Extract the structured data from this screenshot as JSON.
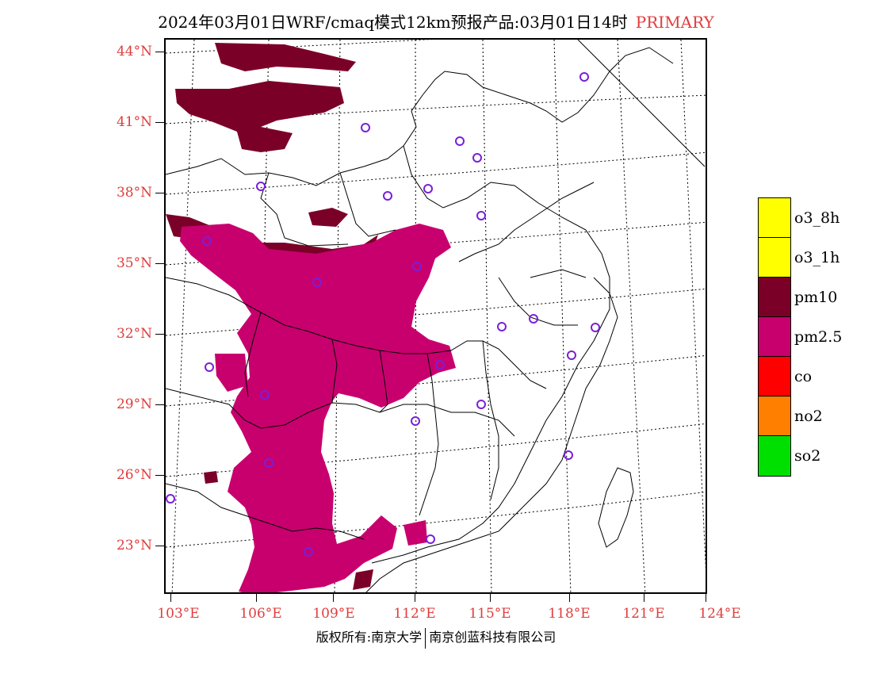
{
  "title": {
    "main": "2024年03月01日WRF/cmaq模式12km预报产品:03月01日14时",
    "pollutant": "PRIMARY"
  },
  "map": {
    "lat_labels": [
      "44°N",
      "41°N",
      "38°N",
      "35°N",
      "32°N",
      "29°N",
      "26°N",
      "23°N"
    ],
    "lon_labels": [
      "103°E",
      "106°E",
      "109°E",
      "112°E",
      "115°E",
      "118°E",
      "121°E",
      "124°E"
    ],
    "background_color": "#ffffff",
    "boundary_color": "#000000",
    "grid_style": "dotted",
    "city_marker_color": "#7a1fd8",
    "city_marker": "circle-icon"
  },
  "legend": {
    "items": [
      {
        "label": "o3_8h",
        "color": "#ffff00"
      },
      {
        "label": "o3_1h",
        "color": "#ffff00"
      },
      {
        "label": "pm10",
        "color": "#7b0028"
      },
      {
        "label": "pm2.5",
        "color": "#c8006e"
      },
      {
        "label": "co",
        "color": "#ff0000"
      },
      {
        "label": "no2",
        "color": "#ff7f00"
      },
      {
        "label": "so2",
        "color": "#00e000"
      }
    ]
  },
  "footer": {
    "copyright": "版权所有:南京大学",
    "company": "南京创蓝科技有限公司"
  }
}
